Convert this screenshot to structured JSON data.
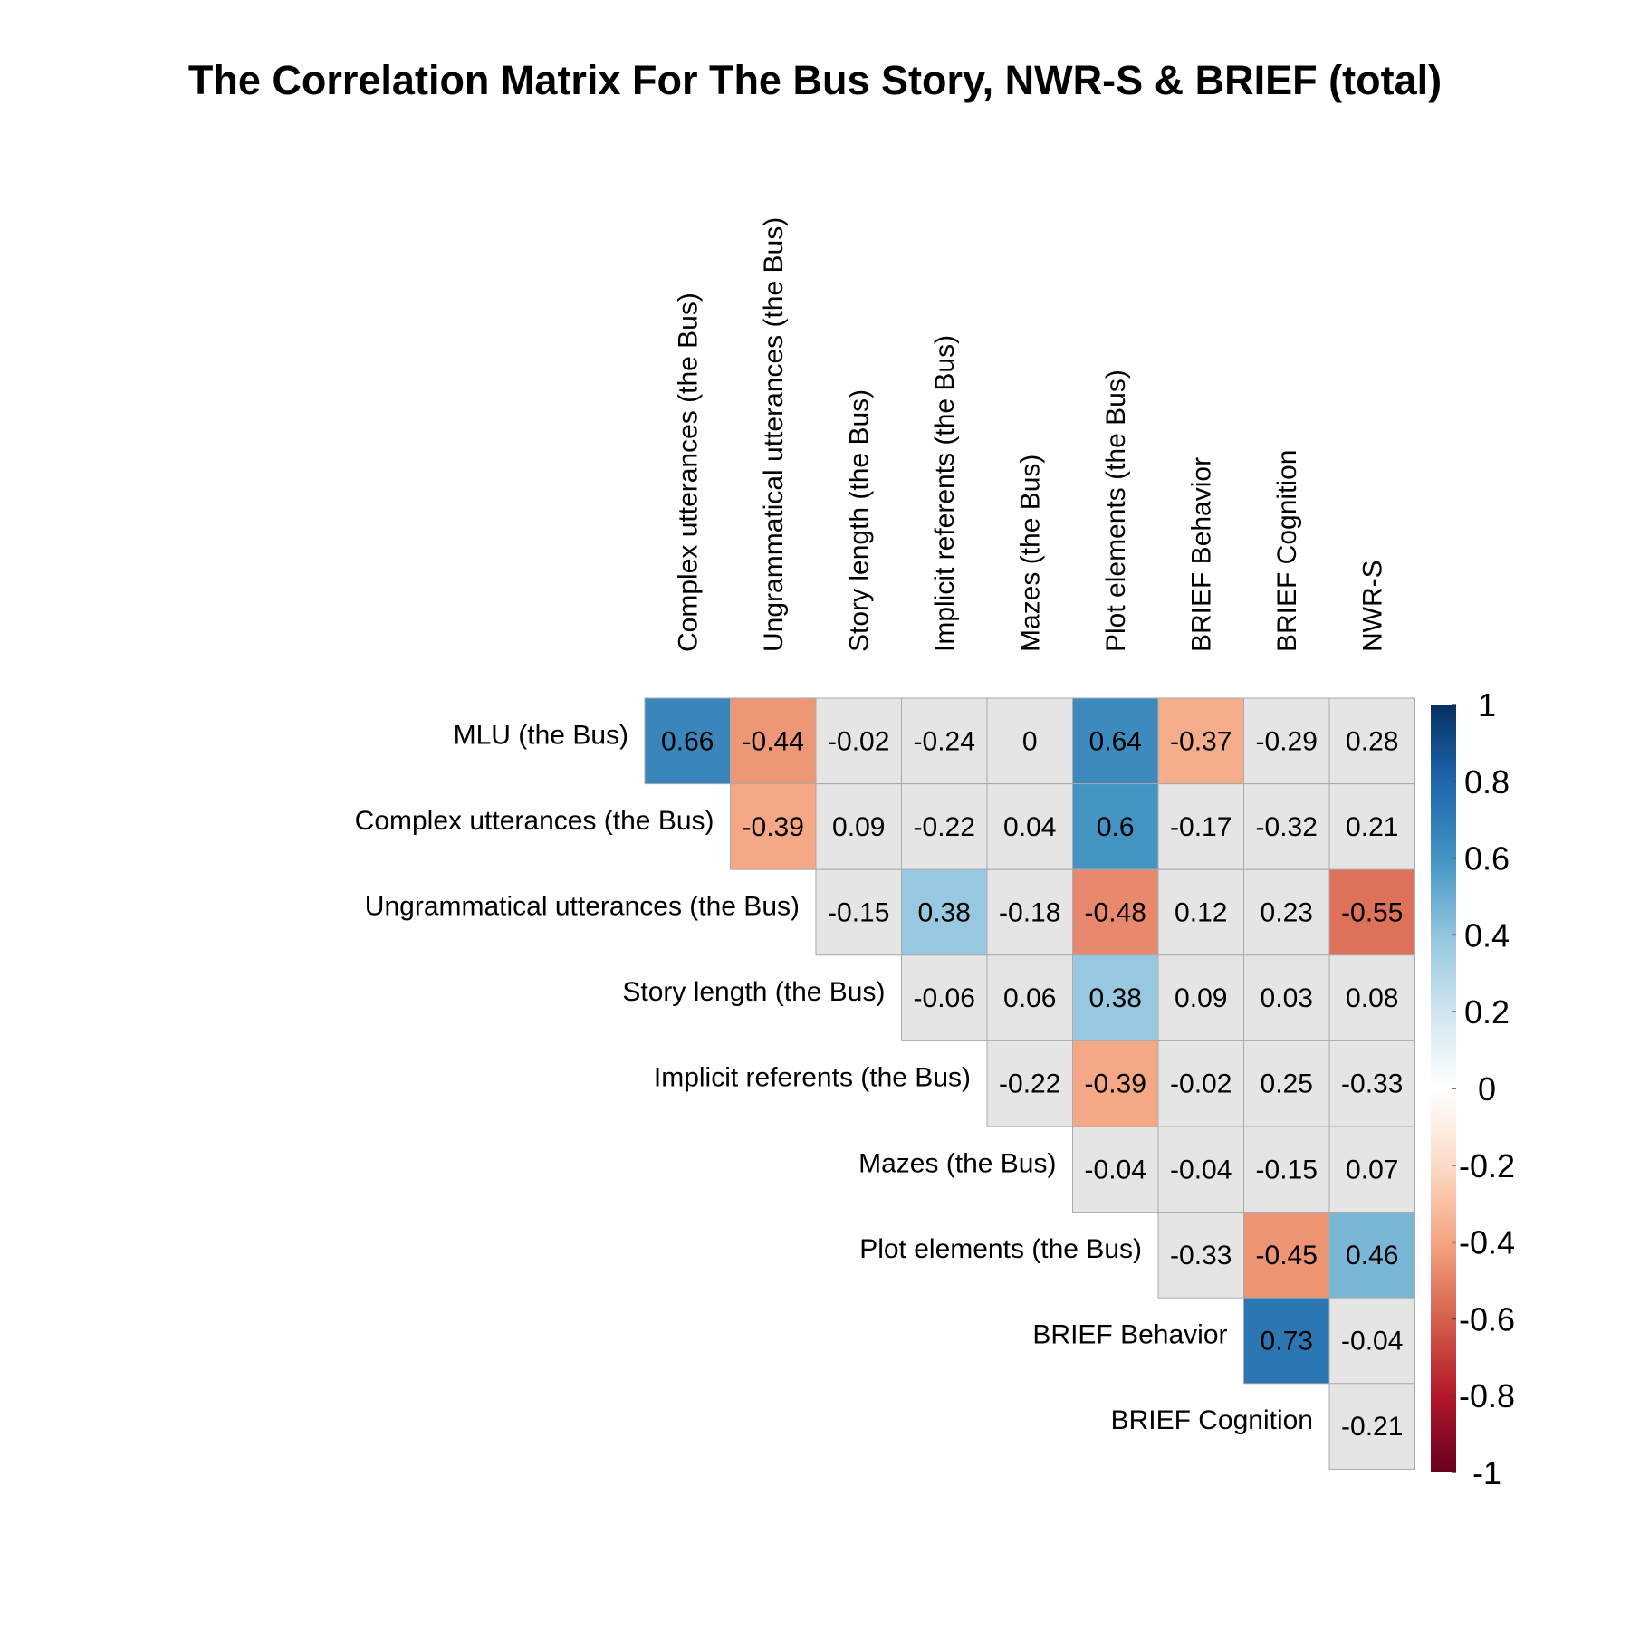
{
  "chart_data": {
    "type": "heatmap",
    "title": "The Correlation Matrix For The Bus Story, NWR-S & BRIEF (total)",
    "rows": [
      "MLU (the Bus)",
      "Complex utterances (the Bus)",
      "Ungrammatical utterances (the Bus)",
      "Story length (the Bus)",
      "Implicit referents (the Bus)",
      "Mazes (the Bus)",
      "Plot elements (the Bus)",
      "BRIEF Behavior",
      "BRIEF Cognition"
    ],
    "columns": [
      "Complex utterances (the Bus)",
      "Ungrammatical utterances (the Bus)",
      "Story length (the Bus)",
      "Implicit referents (the Bus)",
      "Mazes (the Bus)",
      "Plot elements (the Bus)",
      "BRIEF Behavior",
      "BRIEF Cognition",
      "NWR-S"
    ],
    "values": [
      [
        0.66,
        -0.44,
        -0.02,
        -0.24,
        0,
        0.64,
        -0.37,
        -0.29,
        0.28
      ],
      [
        null,
        -0.39,
        0.09,
        -0.22,
        0.04,
        0.6,
        -0.17,
        -0.32,
        0.21
      ],
      [
        null,
        null,
        -0.15,
        0.38,
        -0.18,
        -0.48,
        0.12,
        0.23,
        -0.55
      ],
      [
        null,
        null,
        null,
        -0.06,
        0.06,
        0.38,
        0.09,
        0.03,
        0.08
      ],
      [
        null,
        null,
        null,
        null,
        -0.22,
        -0.39,
        -0.02,
        0.25,
        -0.33
      ],
      [
        null,
        null,
        null,
        null,
        null,
        -0.04,
        -0.04,
        -0.15,
        0.07
      ],
      [
        null,
        null,
        null,
        null,
        null,
        null,
        -0.33,
        -0.45,
        0.46
      ],
      [
        null,
        null,
        null,
        null,
        null,
        null,
        null,
        0.73,
        -0.04
      ],
      [
        null,
        null,
        null,
        null,
        null,
        null,
        null,
        null,
        -0.21
      ]
    ],
    "colored_cells": [
      [
        0,
        0
      ],
      [
        0,
        1
      ],
      [
        0,
        5
      ],
      [
        0,
        6
      ],
      [
        1,
        1
      ],
      [
        1,
        5
      ],
      [
        2,
        3
      ],
      [
        2,
        5
      ],
      [
        2,
        8
      ],
      [
        3,
        5
      ],
      [
        4,
        5
      ],
      [
        6,
        7
      ],
      [
        6,
        8
      ],
      [
        7,
        7
      ]
    ],
    "insignificant_fill": "#e5e5e5",
    "cell_border_color": "#aaaaaa",
    "colorbar": {
      "range": [
        -1,
        1
      ],
      "ticks": [
        1,
        0.8,
        0.6,
        0.4,
        0.2,
        0,
        -0.2,
        -0.4,
        -0.6,
        -0.8,
        -1
      ],
      "palette": [
        "#67001f",
        "#b2182b",
        "#d6604d",
        "#f4a582",
        "#fddbc7",
        "#ffffff",
        "#d1e5f0",
        "#92c5de",
        "#4393c3",
        "#2166ac",
        "#053061"
      ]
    }
  }
}
